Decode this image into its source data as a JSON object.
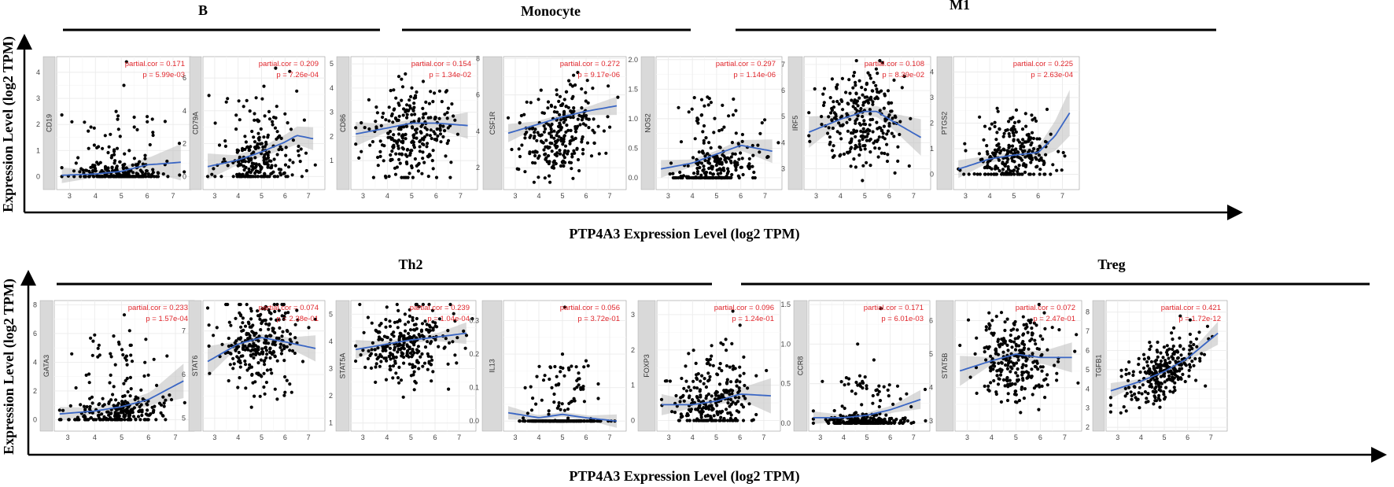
{
  "figure": {
    "rows": [
      {
        "groups": [
          {
            "label": "B"
          },
          {
            "label": "Monocyte"
          },
          {
            "label": "M1"
          }
        ],
        "xlabel": "PTP4A3 Expression Level (log2 TPM)",
        "ylabel": "Expression Level (log2 TPM)"
      },
      {
        "groups": [
          {
            "label": "Th2"
          },
          {
            "label": "Treg"
          }
        ],
        "xlabel": "PTP4A3 Expression Level (log2 TPM)",
        "ylabel": "Expression Level (log2 TPM)"
      }
    ],
    "stat_labels": {
      "cor": "partial.cor",
      "p": "p"
    }
  },
  "chart_data": [
    {
      "type": "scatter",
      "row": 0,
      "group": "B",
      "gene": "CD19",
      "partial_cor": "0.171",
      "p": "5.99e-03",
      "xlim": [
        2.5,
        7.7
      ],
      "ylim": [
        -0.5,
        4.6
      ],
      "xticks": [
        3,
        4,
        5,
        6,
        7
      ],
      "yticks": [
        0,
        1,
        2,
        3,
        4
      ],
      "fit": [
        [
          2.7,
          0.05
        ],
        [
          4,
          0.1
        ],
        [
          5,
          0.2
        ],
        [
          6,
          0.45
        ],
        [
          7.3,
          0.55
        ]
      ],
      "band": [
        0.3,
        0.15,
        0.15,
        0.3,
        0.7
      ],
      "cloud": {
        "n": 260,
        "xmean": 4.9,
        "xsd": 0.85,
        "base": 0.05,
        "spread": 0.25,
        "tail": 0.18,
        "tailmax": 2.5,
        "floor": 0
      },
      "outliers": [
        [
          5.2,
          4.4
        ],
        [
          5.1,
          3.5
        ],
        [
          4.8,
          2.5
        ],
        [
          6.0,
          2.3
        ],
        [
          6.2,
          2.2
        ],
        [
          5.5,
          1.9
        ]
      ]
    },
    {
      "type": "scatter",
      "row": 0,
      "group": "B",
      "gene": "CD79A",
      "partial_cor": "0.209",
      "p": "7.26e-04",
      "xlim": [
        2.5,
        7.7
      ],
      "ylim": [
        -0.8,
        7.3
      ],
      "xticks": [
        3,
        4,
        5,
        6,
        7
      ],
      "yticks": [
        0,
        2,
        4,
        6
      ],
      "fit": [
        [
          2.7,
          0.6
        ],
        [
          4,
          1.0
        ],
        [
          5,
          1.5
        ],
        [
          6,
          2.1
        ],
        [
          6.5,
          2.5
        ],
        [
          7.2,
          2.3
        ]
      ],
      "band": [
        0.8,
        0.35,
        0.3,
        0.45,
        0.7
      ],
      "cloud": {
        "n": 250,
        "xmean": 4.9,
        "xsd": 0.85,
        "base": 0.6,
        "slope": 0.35,
        "spread": 0.9,
        "tail": 0.25,
        "tailmax": 5,
        "floor": 0
      },
      "outliers": [
        [
          5.6,
          6.6
        ],
        [
          6.2,
          6.4
        ],
        [
          5.1,
          5.5
        ],
        [
          6.5,
          5.2
        ]
      ]
    },
    {
      "type": "scatter",
      "row": 0,
      "group": "Monocyte",
      "gene": "CD86",
      "partial_cor": "0.154",
      "p": "1.34e-02",
      "xlim": [
        2.5,
        7.7
      ],
      "ylim": [
        -0.2,
        5.3
      ],
      "xticks": [
        3,
        4,
        5,
        6,
        7
      ],
      "yticks": [
        1,
        2,
        3,
        4,
        5
      ],
      "fit": [
        [
          2.7,
          2.1
        ],
        [
          4,
          2.35
        ],
        [
          5,
          2.55
        ],
        [
          6,
          2.55
        ],
        [
          7.3,
          2.45
        ]
      ],
      "band": [
        0.5,
        0.2,
        0.15,
        0.25,
        0.55
      ],
      "cloud": {
        "n": 260,
        "xmean": 4.9,
        "xsd": 0.9,
        "base": 2.1,
        "slope": 0.1,
        "spread": 0.95,
        "floor": 0.3
      }
    },
    {
      "type": "scatter",
      "row": 0,
      "group": "Monocyte",
      "gene": "CSF1R",
      "partial_cor": "0.272",
      "p": "9.17e-06",
      "xlim": [
        2.5,
        7.7
      ],
      "ylim": [
        0.8,
        8.1
      ],
      "xticks": [
        3,
        4,
        5,
        6,
        7
      ],
      "yticks": [
        2,
        4,
        6,
        8
      ],
      "fit": [
        [
          2.7,
          3.9
        ],
        [
          4,
          4.4
        ],
        [
          5,
          4.8
        ],
        [
          6,
          5.1
        ],
        [
          7.3,
          5.4
        ]
      ],
      "band": [
        0.5,
        0.2,
        0.15,
        0.25,
        0.5
      ],
      "cloud": {
        "n": 260,
        "xmean": 4.9,
        "xsd": 0.9,
        "base": 3.9,
        "slope": 0.35,
        "spread": 1.1,
        "floor": 1.2
      }
    },
    {
      "type": "scatter",
      "row": 0,
      "group": "M1",
      "gene": "NOS2",
      "partial_cor": "0.297",
      "p": "1.14e-06",
      "xlim": [
        2.5,
        7.7
      ],
      "ylim": [
        -0.2,
        2.05
      ],
      "xticks": [
        3,
        4,
        5,
        6,
        7
      ],
      "yticks": [
        0,
        0.5,
        1,
        1.5,
        2
      ],
      "ytick_labels": [
        "0.0",
        "0.5",
        "1.0",
        "1.5",
        "2.0"
      ],
      "fit": [
        [
          2.7,
          0.15
        ],
        [
          4,
          0.25
        ],
        [
          5,
          0.4
        ],
        [
          6,
          0.55
        ],
        [
          7.3,
          0.45
        ]
      ],
      "band": [
        0.15,
        0.07,
        0.06,
        0.1,
        0.2
      ],
      "cloud": {
        "n": 250,
        "xmean": 4.9,
        "xsd": 0.85,
        "base": 0.1,
        "slope": 0.1,
        "spread": 0.25,
        "tail": 0.2,
        "tailmax": 1.4,
        "floor": 0
      }
    },
    {
      "type": "scatter",
      "row": 0,
      "group": "M1",
      "gene": "IRF5",
      "partial_cor": "0.108",
      "p": "8.39e-02",
      "xlim": [
        2.5,
        7.7
      ],
      "ylim": [
        2.2,
        7.3
      ],
      "xticks": [
        3,
        4,
        5,
        6,
        7
      ],
      "yticks": [
        3,
        4,
        5,
        6,
        7
      ],
      "fit": [
        [
          2.7,
          4.4
        ],
        [
          4,
          4.9
        ],
        [
          5,
          5.2
        ],
        [
          5.5,
          5.2
        ],
        [
          6,
          4.9
        ],
        [
          7.3,
          4.2
        ]
      ],
      "band": [
        0.6,
        0.2,
        0.15,
        0.3,
        0.7
      ],
      "cloud": {
        "n": 260,
        "xmean": 4.9,
        "xsd": 0.85,
        "base": 4.9,
        "slope": 0.05,
        "spread": 0.85,
        "floor": 2.5
      }
    },
    {
      "type": "scatter",
      "row": 0,
      "group": "M1",
      "gene": "PTGS2",
      "partial_cor": "0.225",
      "p": "2.63e-04",
      "xlim": [
        2.5,
        7.7
      ],
      "ylim": [
        -0.6,
        4.6
      ],
      "xticks": [
        3,
        4,
        5,
        6,
        7
      ],
      "yticks": [
        0,
        1,
        2,
        3,
        4
      ],
      "fit": [
        [
          2.7,
          0.2
        ],
        [
          4,
          0.6
        ],
        [
          5,
          0.75
        ],
        [
          6,
          0.85
        ],
        [
          6.7,
          1.5
        ],
        [
          7.3,
          2.4
        ]
      ],
      "band": [
        0.35,
        0.15,
        0.12,
        0.3,
        0.9
      ],
      "cloud": {
        "n": 260,
        "xmean": 4.9,
        "xsd": 0.85,
        "base": 0.6,
        "slope": 0.1,
        "spread": 0.55,
        "tail": 0.18,
        "tailmax": 2.7,
        "floor": 0
      }
    },
    {
      "type": "scatter",
      "row": 1,
      "group": "Th2",
      "gene": "GATA3",
      "partial_cor": "0.233",
      "p": "1.57e-04",
      "xlim": [
        2.5,
        7.7
      ],
      "ylim": [
        -0.8,
        8.3
      ],
      "xticks": [
        3,
        4,
        5,
        6,
        7
      ],
      "yticks": [
        0,
        2,
        4,
        6,
        8
      ],
      "fit": [
        [
          2.7,
          0.4
        ],
        [
          4,
          0.6
        ],
        [
          5,
          0.9
        ],
        [
          6,
          1.4
        ],
        [
          7.3,
          2.7
        ]
      ],
      "band": [
        0.5,
        0.25,
        0.3,
        0.5,
        1.2
      ],
      "cloud": {
        "n": 260,
        "xmean": 4.9,
        "xsd": 0.85,
        "base": 0.4,
        "slope": 0.2,
        "spread": 0.6,
        "tail": 0.2,
        "tailmax": 6,
        "floor": 0
      },
      "outliers": [
        [
          5.1,
          7.3
        ],
        [
          4.0,
          5.9
        ],
        [
          5.3,
          6.2
        ],
        [
          5.9,
          5.6
        ],
        [
          6.2,
          4.2
        ]
      ]
    },
    {
      "type": "scatter",
      "row": 1,
      "group": "Th2",
      "gene": "STAT6",
      "partial_cor": "0.074",
      "p": "2.38e-01",
      "xlim": [
        2.5,
        7.7
      ],
      "ylim": [
        4.7,
        7.7
      ],
      "xticks": [
        3,
        4,
        5,
        6,
        7
      ],
      "yticks": [
        5,
        6,
        7
      ],
      "fit": [
        [
          2.7,
          6.3
        ],
        [
          4,
          6.7
        ],
        [
          5,
          6.85
        ],
        [
          6,
          6.75
        ],
        [
          7.3,
          6.6
        ]
      ],
      "band": [
        0.35,
        0.1,
        0.08,
        0.12,
        0.3
      ],
      "cloud": {
        "n": 270,
        "xmean": 4.9,
        "xsd": 0.85,
        "base": 6.7,
        "slope": 0.03,
        "spread": 0.5,
        "floor": 4.9
      }
    },
    {
      "type": "scatter",
      "row": 1,
      "group": "Th2",
      "gene": "STAT5A",
      "partial_cor": "0.239",
      "p": "1.04e-04",
      "xlim": [
        2.5,
        7.7
      ],
      "ylim": [
        0.7,
        5.5
      ],
      "xticks": [
        3,
        4,
        5,
        6,
        7
      ],
      "yticks": [
        1,
        2,
        3,
        4,
        5
      ],
      "fit": [
        [
          2.7,
          3.7
        ],
        [
          4,
          3.9
        ],
        [
          5,
          4.05
        ],
        [
          6,
          4.15
        ],
        [
          7.3,
          4.3
        ]
      ],
      "band": [
        0.35,
        0.12,
        0.1,
        0.15,
        0.4
      ],
      "cloud": {
        "n": 270,
        "xmean": 4.9,
        "xsd": 0.85,
        "base": 3.9,
        "slope": 0.15,
        "spread": 0.65,
        "floor": 0.9
      }
    },
    {
      "type": "scatter",
      "row": 1,
      "group": "Th2",
      "gene": "IL13",
      "partial_cor": "0.056",
      "p": "3.72e-01",
      "xlim": [
        2.5,
        7.7
      ],
      "ylim": [
        -0.03,
        0.36
      ],
      "xticks": [
        3,
        4,
        5,
        6,
        7
      ],
      "yticks": [
        0,
        0.1,
        0.2,
        0.3
      ],
      "ytick_labels": [
        "0.0",
        "0.1",
        "0.2",
        "0.3"
      ],
      "fit": [
        [
          2.7,
          0.025
        ],
        [
          4,
          0.01
        ],
        [
          5,
          0.02
        ],
        [
          6,
          0.01
        ],
        [
          7.3,
          0
        ]
      ],
      "band": [
        0.02,
        0.008,
        0.007,
        0.008,
        0.02
      ],
      "cloud": {
        "n": 230,
        "xmean": 4.9,
        "xsd": 0.85,
        "base": 0,
        "spread": 0,
        "tail": 0.3,
        "tailmax": 0.17,
        "floor": 0
      },
      "outliers": [
        [
          5.1,
          0.34
        ],
        [
          5.0,
          0.2
        ],
        [
          6.0,
          0.18
        ],
        [
          4.5,
          0.16
        ]
      ]
    },
    {
      "type": "scatter",
      "row": 1,
      "group": "Treg",
      "gene": "FOXP3",
      "partial_cor": "0.096",
      "p": "1.24e-01",
      "xlim": [
        2.5,
        7.7
      ],
      "ylim": [
        -0.3,
        3.4
      ],
      "xticks": [
        3,
        4,
        5,
        6,
        7
      ],
      "yticks": [
        0,
        1,
        2,
        3
      ],
      "fit": [
        [
          2.7,
          0.45
        ],
        [
          4,
          0.45
        ],
        [
          5,
          0.55
        ],
        [
          6,
          0.75
        ],
        [
          7.3,
          0.7
        ]
      ],
      "band": [
        0.3,
        0.12,
        0.1,
        0.2,
        0.5
      ],
      "cloud": {
        "n": 260,
        "xmean": 4.9,
        "xsd": 0.85,
        "base": 0.4,
        "slope": 0.05,
        "spread": 0.45,
        "tail": 0.2,
        "tailmax": 2.3,
        "floor": 0
      },
      "outliers": [
        [
          5.7,
          3.1
        ],
        [
          6.0,
          2.7
        ],
        [
          5.4,
          2.3
        ]
      ]
    },
    {
      "type": "scatter",
      "row": 1,
      "group": "Treg",
      "gene": "CCR8",
      "partial_cor": "0.171",
      "p": "6.01e-03",
      "xlim": [
        2.5,
        7.7
      ],
      "ylim": [
        -0.1,
        1.55
      ],
      "xticks": [
        3,
        4,
        5,
        6,
        7
      ],
      "yticks": [
        0,
        0.5,
        1,
        1.5
      ],
      "ytick_labels": [
        "0.0",
        "0.5",
        "1.0",
        "1.5"
      ],
      "fit": [
        [
          2.7,
          0.07
        ],
        [
          4,
          0.07
        ],
        [
          5,
          0.1
        ],
        [
          6,
          0.17
        ],
        [
          7.3,
          0.3
        ]
      ],
      "band": [
        0.08,
        0.04,
        0.03,
        0.05,
        0.12
      ],
      "cloud": {
        "n": 260,
        "xmean": 4.9,
        "xsd": 0.85,
        "base": 0.02,
        "spread": 0.04,
        "tail": 0.22,
        "tailmax": 0.6,
        "floor": 0
      },
      "outliers": [
        [
          5.6,
          1.45
        ],
        [
          4.6,
          1.0
        ],
        [
          5.3,
          0.8
        ]
      ]
    },
    {
      "type": "scatter",
      "row": 1,
      "group": "Treg",
      "gene": "STAT5B",
      "partial_cor": "0.072",
      "p": "2.47e-01",
      "xlim": [
        2.5,
        7.7
      ],
      "ylim": [
        2.7,
        6.6
      ],
      "xticks": [
        3,
        4,
        5,
        6,
        7
      ],
      "yticks": [
        3,
        4,
        5,
        6
      ],
      "fit": [
        [
          2.7,
          4.5
        ],
        [
          4,
          4.8
        ],
        [
          5,
          5.0
        ],
        [
          6,
          4.9
        ],
        [
          7.3,
          4.9
        ]
      ],
      "band": [
        0.45,
        0.15,
        0.12,
        0.2,
        0.45
      ],
      "cloud": {
        "n": 270,
        "xmean": 4.9,
        "xsd": 0.85,
        "base": 4.85,
        "slope": 0.03,
        "spread": 0.65,
        "floor": 2.9
      }
    },
    {
      "type": "scatter",
      "row": 1,
      "group": "Treg",
      "gene": "TGFB1",
      "partial_cor": "0.421",
      "p": "1.72e-12",
      "xlim": [
        2.5,
        7.7
      ],
      "ylim": [
        1.8,
        8.6
      ],
      "xticks": [
        3,
        4,
        5,
        6,
        7
      ],
      "yticks": [
        2,
        3,
        4,
        5,
        6,
        7,
        8
      ],
      "fit": [
        [
          2.7,
          3.9
        ],
        [
          4,
          4.4
        ],
        [
          5,
          4.9
        ],
        [
          6,
          5.6
        ],
        [
          7.3,
          6.9
        ]
      ],
      "band": [
        0.4,
        0.15,
        0.1,
        0.2,
        0.6
      ],
      "cloud": {
        "n": 270,
        "xmean": 4.9,
        "xsd": 0.85,
        "base": 4.8,
        "slope": 0.7,
        "spread": 0.75,
        "floor": 2.1
      }
    }
  ]
}
